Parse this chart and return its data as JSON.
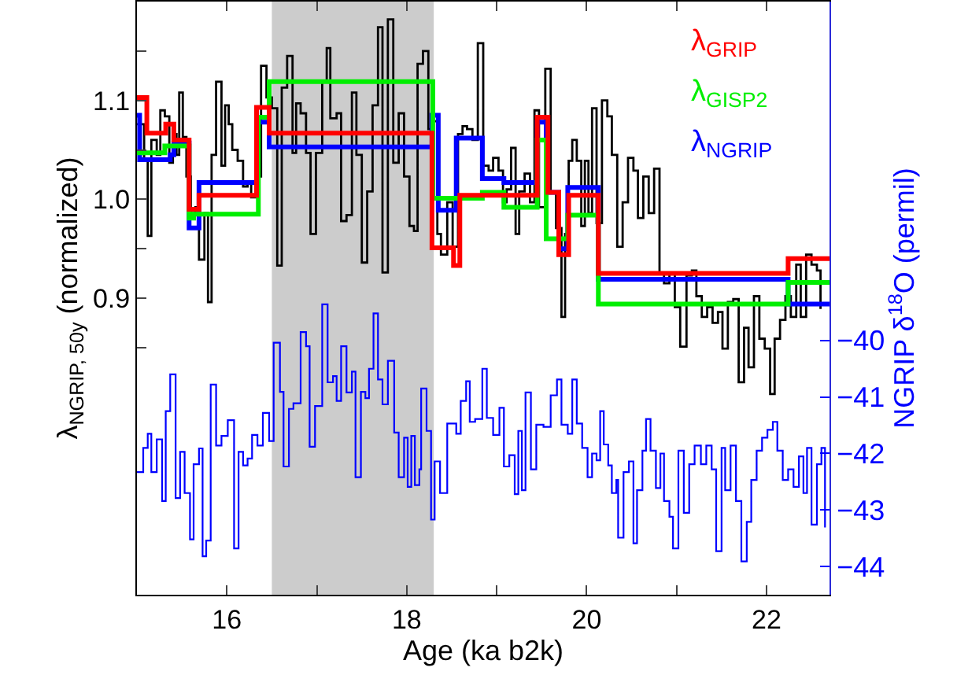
{
  "chart_data": {
    "type": "step",
    "xlabel": "Age (ka b2k)",
    "ylabel": "λ$_{NGRIP, 50y}$ (normalized)",
    "y2label": "NGRIP δ$^{18}$O (permil)",
    "xlim": [
      15,
      22.7
    ],
    "xticks": [
      16,
      {
        "value": 17,
        "label": null
      },
      18,
      {
        "value": 19,
        "label": null
      },
      20,
      {
        "value": 21,
        "label": null
      },
      22
    ],
    "ylim": [
      0.6,
      1.2
    ],
    "yticks": [
      {
        "value": 0.85,
        "label": null
      },
      0.9,
      {
        "value": 0.95,
        "label": null
      },
      {
        "value": 1.0,
        "label": "1.0"
      },
      {
        "value": 1.05,
        "label": null
      },
      1.1,
      {
        "value": 1.15,
        "label": null
      }
    ],
    "y2lim": [
      -44.5,
      -34
    ],
    "y2ticks": [
      {
        "value": -44,
        "label": "−44"
      },
      {
        "value": -43,
        "label": "−43"
      },
      {
        "value": -42,
        "label": "−42"
      },
      {
        "value": -41,
        "label": "−41"
      },
      {
        "value": -40,
        "label": "−40"
      }
    ],
    "grid": false,
    "legend": "top right",
    "marker": "none",
    "line_style": "solid",
    "bands": [
      {
        "axis": "x",
        "from": 16.5,
        "to": 18.3,
        "color": "#cccccc"
      }
    ],
    "series": [
      {
        "color": "#000000",
        "x": [
          15.0,
          15.08,
          15.12,
          15.16,
          15.22,
          15.26,
          15.31,
          15.36,
          15.4,
          15.44,
          15.47,
          15.51,
          15.55,
          15.6,
          15.65,
          15.69,
          15.75,
          15.79,
          15.83,
          15.88,
          15.94,
          15.98,
          16.02,
          16.06,
          16.12,
          16.18,
          16.23,
          16.27,
          16.32,
          16.38,
          16.44,
          16.5,
          16.56,
          16.61,
          16.67,
          16.73,
          16.77,
          16.82,
          16.88,
          16.93,
          16.99,
          17.06,
          17.11,
          17.15,
          17.22,
          17.27,
          17.33,
          17.39,
          17.44,
          17.5,
          17.56,
          17.62,
          17.68,
          17.73,
          17.79,
          17.85,
          17.91,
          17.97,
          18.03,
          18.08,
          18.12,
          18.18,
          18.24,
          18.3,
          18.34,
          18.38,
          18.45,
          18.51,
          18.57,
          18.62,
          18.67,
          18.73,
          18.79,
          18.85,
          18.91,
          18.96,
          19.02,
          19.07,
          19.11,
          19.16,
          19.21,
          19.25,
          19.31,
          19.37,
          19.42,
          19.47,
          19.54,
          19.6,
          19.66,
          19.72,
          19.76,
          19.8,
          19.84,
          19.89,
          19.94,
          19.98,
          20.02,
          20.06,
          20.11,
          20.17,
          20.23,
          20.28,
          20.34,
          20.4,
          20.46,
          20.52,
          20.57,
          20.63,
          20.69,
          20.75,
          20.81,
          20.86,
          20.92,
          20.98,
          21.04,
          21.11,
          21.17,
          21.22,
          21.28,
          21.34,
          21.4,
          21.46,
          21.51,
          21.57,
          21.63,
          21.69,
          21.75,
          21.8,
          21.86,
          21.92,
          21.98,
          22.04,
          22.09,
          22.15,
          22.21,
          22.27,
          22.33,
          22.38,
          22.44,
          22.5,
          22.56,
          22.6
        ],
        "values": [
          1.076,
          1.039,
          0.963,
          1.06,
          1.045,
          1.09,
          1.084,
          1.037,
          1.066,
          1.045,
          1.108,
          1.063,
          1.023,
          0.986,
          0.992,
          0.939,
          0.986,
          0.896,
          1.045,
          1.119,
          1.034,
          1.095,
          1.076,
          1.05,
          1.039,
          1.013,
          1.018,
          1.002,
          1.023,
          1.135,
          1.103,
          1.092,
          0.933,
          1.113,
          1.145,
          1.047,
          1.097,
          1.087,
          1.047,
          0.965,
          1.047,
          1.119,
          1.153,
          1.082,
          1.087,
          0.978,
          0.984,
          1.108,
          1.045,
          0.936,
          1.008,
          1.095,
          1.174,
          0.926,
          1.182,
          1.037,
          1.087,
          1.023,
          0.973,
          0.968,
          1.137,
          1.15,
          1.071,
          1.079,
          0.965,
          0.944,
          0.997,
          0.952,
          1.066,
          1.074,
          1.071,
          1.06,
          1.158,
          1.034,
          1.029,
          1.042,
          1.029,
          0.997,
          1.01,
          1.052,
          0.965,
          1.008,
          1.026,
          0.997,
          1.09,
          0.992,
          1.132,
          1.008,
          0.971,
          0.881,
          0.965,
          1.039,
          1.06,
          1.039,
          0.973,
          1.039,
          0.986,
          1.092,
          0.976,
          1.1,
          1.084,
          1.045,
          0.952,
          0.997,
          1.042,
          1.029,
          0.981,
          1.023,
          0.986,
          1.031,
          0.926,
          0.915,
          0.926,
          0.891,
          0.851,
          0.923,
          0.928,
          0.902,
          0.881,
          0.891,
          0.875,
          0.886,
          0.849,
          0.896,
          0.899,
          0.815,
          0.87,
          0.83,
          0.902,
          0.859,
          0.849,
          0.803,
          0.859,
          0.878,
          0.902,
          0.881,
          0.934,
          0.881,
          0.944,
          0.934,
          0.928,
          0.889
        ]
      },
      {
        "color": "#0000ff",
        "axis": "y2",
        "x": [
          15.0,
          15.03,
          15.07,
          15.12,
          15.16,
          15.22,
          15.28,
          15.32,
          15.37,
          15.43,
          15.48,
          15.53,
          15.59,
          15.63,
          15.69,
          15.73,
          15.77,
          15.82,
          15.88,
          15.94,
          16.01,
          16.08,
          16.13,
          16.18,
          16.23,
          16.28,
          16.34,
          16.4,
          16.47,
          16.52,
          16.59,
          16.63,
          16.69,
          16.74,
          16.82,
          16.88,
          16.92,
          16.98,
          17.06,
          17.12,
          17.18,
          17.22,
          17.27,
          17.33,
          17.39,
          17.43,
          17.49,
          17.54,
          17.58,
          17.63,
          17.68,
          17.73,
          17.79,
          17.86,
          17.91,
          17.97,
          18.01,
          18.05,
          18.09,
          18.14,
          18.16,
          18.22,
          18.27,
          18.31,
          18.37,
          18.45,
          18.55,
          18.6,
          18.66,
          18.7,
          18.76,
          18.84,
          18.89,
          18.96,
          19.03,
          19.08,
          19.14,
          19.2,
          19.24,
          19.28,
          19.32,
          19.38,
          19.44,
          19.52,
          19.6,
          19.67,
          19.72,
          19.79,
          19.84,
          19.89,
          19.95,
          20.01,
          20.06,
          20.11,
          20.15,
          20.19,
          20.24,
          20.28,
          20.33,
          20.35,
          20.41,
          20.47,
          20.52,
          20.56,
          20.62,
          20.66,
          20.71,
          20.77,
          20.82,
          20.86,
          20.92,
          20.96,
          21.02,
          21.08,
          21.14,
          21.2,
          21.27,
          21.33,
          21.39,
          21.44,
          21.5,
          21.54,
          21.6,
          21.66,
          21.72,
          21.78,
          21.83,
          21.89,
          21.95,
          22.01,
          22.07,
          22.12,
          22.18,
          22.24,
          22.3,
          22.36,
          22.41,
          22.45,
          22.5,
          22.56,
          22.61,
          22.65
        ],
        "values": [
          -42.33,
          -42.33,
          -41.9,
          -41.65,
          -42.33,
          -41.75,
          -42.84,
          -41.25,
          -40.6,
          -42.79,
          -41.97,
          -42.7,
          -43.52,
          -42.19,
          -41.91,
          -43.82,
          -43.54,
          -40.78,
          -41.86,
          -41.69,
          -41.41,
          -43.68,
          -41.97,
          -42.21,
          -42.09,
          -41.67,
          -41.86,
          -41.28,
          -41.78,
          -40.04,
          -40.91,
          -42.23,
          -41.21,
          -41.11,
          -39.85,
          -40.1,
          -41.88,
          -41.16,
          -39.36,
          -40.74,
          -40.63,
          -41.07,
          -40.1,
          -40.92,
          -40.55,
          -42.42,
          -40.91,
          -41.02,
          -40.5,
          -39.52,
          -40.69,
          -41.13,
          -40.36,
          -41.63,
          -42.42,
          -41.72,
          -42.59,
          -41.69,
          -42.56,
          -42.28,
          -40.85,
          -41.6,
          -43.17,
          -42.14,
          -42.7,
          -41.47,
          -41.65,
          -41.07,
          -40.72,
          -41.44,
          -41.39,
          -40.5,
          -41.37,
          -41.67,
          -41.19,
          -42.23,
          -42.03,
          -42.72,
          -41.6,
          -42.65,
          -40.92,
          -42.28,
          -41.49,
          -41.53,
          -40.97,
          -40.69,
          -41.49,
          -41.65,
          -40.69,
          -41.47,
          -41.9,
          -42.42,
          -42.0,
          -42.12,
          -41.25,
          -41.84,
          -42.21,
          -42.7,
          -42.47,
          -43.49,
          -42.33,
          -42.14,
          -43.59,
          -42.65,
          -41.95,
          -41.39,
          -41.95,
          -42.61,
          -42.0,
          -42.84,
          -43.12,
          -43.68,
          -41.95,
          -43.05,
          -42.19,
          -41.86,
          -42.19,
          -41.86,
          -42.28,
          -43.73,
          -41.9,
          -42.65,
          -41.86,
          -42.84,
          -43.91,
          -43.21,
          -42.47,
          -41.95,
          -41.72,
          -41.58,
          -41.44,
          -41.95,
          -42.47,
          -42.28,
          -42.59,
          -42.05,
          -42.7,
          -41.9,
          -43.26,
          -42.19,
          -41.9,
          -43.31
        ]
      },
      {
        "name": "λ$_{GRIP}$",
        "color": "#ff0000",
        "x": [
          15.0,
          15.11,
          15.32,
          15.41,
          15.58,
          15.69,
          16.33,
          16.47,
          18.28,
          18.52,
          18.59,
          19.45,
          19.57,
          19.69,
          19.8,
          20.13,
          22.24,
          22.7
        ],
        "values": [
          1.103,
          1.067,
          1.076,
          1.06,
          0.99,
          1.004,
          1.093,
          1.067,
          0.951,
          0.933,
          1.004,
          1.083,
          1.007,
          0.944,
          1.004,
          0.925,
          0.94,
          0.94
        ]
      },
      {
        "name": "λ$_{GISP2}$",
        "color": "#00ee00",
        "x": [
          15.0,
          15.31,
          15.58,
          15.63,
          16.35,
          16.47,
          18.29,
          18.84,
          19.08,
          19.45,
          19.55,
          19.79,
          20.13,
          22.24,
          22.7
        ],
        "values": [
          1.047,
          1.054,
          0.981,
          0.985,
          1.083,
          1.119,
          1.001,
          1.007,
          0.992,
          1.06,
          0.96,
          0.984,
          0.894,
          0.916,
          0.916
        ]
      },
      {
        "name": "λ$_{NGRIP}$",
        "color": "#0000ff",
        "x": [
          15.0,
          15.03,
          15.37,
          15.41,
          15.58,
          15.69,
          16.34,
          16.47,
          18.28,
          18.35,
          18.55,
          18.84,
          19.08,
          19.45,
          19.55,
          19.69,
          19.79,
          20.13,
          22.24,
          22.7
        ],
        "values": [
          1.085,
          1.04,
          1.045,
          1.057,
          0.971,
          1.017,
          1.078,
          1.053,
          1.085,
          0.989,
          1.062,
          1.021,
          1.017,
          1.078,
          1.007,
          0.95,
          1.012,
          0.919,
          0.894,
          0.894
        ]
      }
    ]
  }
}
